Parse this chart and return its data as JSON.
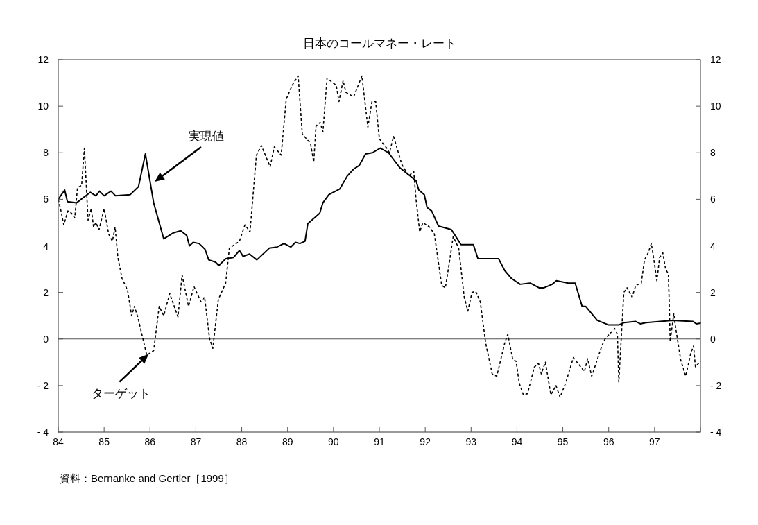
{
  "chart_data": {
    "type": "line",
    "title": "日本のコールマネー・レート",
    "xlim": [
      84,
      98
    ],
    "xticks": [
      84,
      85,
      86,
      87,
      88,
      89,
      90,
      91,
      92,
      93,
      94,
      95,
      96,
      97,
      {
        "value": 98,
        "label": null
      }
    ],
    "ylim": [
      -4,
      12
    ],
    "yticks": [
      {
        "value": -4,
        "label": "- 4"
      },
      {
        "value": -2,
        "label": "- 2"
      },
      0,
      2,
      4,
      6,
      8,
      10,
      12
    ],
    "y2lim": [
      -4,
      12
    ],
    "y2ticks": [
      {
        "value": -4,
        "label": "- 4"
      },
      {
        "value": -2,
        "label": "- 2"
      },
      0,
      2,
      4,
      6,
      8,
      10,
      12
    ],
    "grid": false,
    "marker": "none",
    "ref_lines": [
      {
        "axis": "y",
        "value": 0,
        "color": "#555555",
        "line_style": "solid"
      }
    ],
    "annotations": [
      "実現値",
      {
        "text": "ターゲット",
        "x": 85.97,
        "y": -0.65
      },
      "資料：Bernanke and Gertler［1999］"
    ],
    "series": [
      {
        "color": "#000000",
        "line_style": "solid",
        "x": [
          84,
          84.14,
          84.2,
          84.4,
          84.7,
          84.82,
          84.9,
          85.0,
          85.15,
          85.25,
          85.57,
          85.75,
          85.9,
          86.08,
          86.3,
          86.5,
          86.67,
          86.8,
          86.86,
          86.94,
          87.07,
          87.2,
          87.28,
          87.43,
          87.5,
          87.65,
          87.82,
          87.95,
          88.03,
          88.17,
          88.33,
          88.6,
          88.77,
          88.92,
          89.07,
          89.17,
          89.27,
          89.38,
          89.44,
          89.7,
          89.77,
          89.9,
          90.14,
          90.3,
          90.44,
          90.56,
          90.7,
          90.85,
          91.02,
          91.2,
          91.45,
          91.8,
          91.86,
          91.98,
          92.04,
          92.14,
          92.29,
          92.57,
          92.78,
          93.05,
          93.15,
          93.6,
          93.73,
          93.88,
          94.07,
          94.29,
          94.48,
          94.59,
          94.77,
          94.86,
          95.12,
          95.27,
          95.42,
          95.5,
          95.75,
          96.0,
          96.22,
          96.33,
          96.59,
          96.69,
          96.81,
          97.39,
          97.84,
          97.91,
          98.0
        ],
        "values": [
          6.0,
          6.4,
          5.9,
          5.85,
          6.3,
          6.15,
          6.35,
          6.15,
          6.35,
          6.15,
          6.2,
          6.55,
          7.95,
          5.85,
          4.3,
          4.55,
          4.65,
          4.45,
          4.0,
          4.15,
          4.1,
          3.85,
          3.4,
          3.3,
          3.15,
          3.45,
          3.5,
          3.8,
          3.55,
          3.65,
          3.4,
          3.9,
          3.95,
          4.1,
          3.95,
          4.15,
          4.1,
          4.2,
          4.95,
          5.4,
          5.85,
          6.2,
          6.45,
          7.0,
          7.3,
          7.45,
          7.95,
          8.0,
          8.2,
          8.0,
          7.35,
          6.8,
          6.4,
          6.2,
          5.65,
          5.5,
          4.85,
          4.7,
          4.05,
          4.05,
          3.45,
          3.45,
          2.95,
          2.6,
          2.35,
          2.4,
          2.2,
          2.2,
          2.35,
          2.5,
          2.4,
          2.4,
          1.4,
          1.4,
          0.8,
          0.6,
          0.6,
          0.7,
          0.75,
          0.65,
          0.7,
          0.8,
          0.75,
          0.65,
          0.68
        ]
      },
      {
        "color": "#000000",
        "line_style": "dashed",
        "x": [
          84,
          84.06,
          84.12,
          84.21,
          84.29,
          84.36,
          84.42,
          84.51,
          84.57,
          84.65,
          84.72,
          84.77,
          84.82,
          84.89,
          85.0,
          85.1,
          85.18,
          85.24,
          85.3,
          85.39,
          85.51,
          85.6,
          85.66,
          85.74,
          85.93,
          86.08,
          86.2,
          86.3,
          86.43,
          86.61,
          86.7,
          86.84,
          86.96,
          87.11,
          87.19,
          87.3,
          87.37,
          87.49,
          87.65,
          87.73,
          87.95,
          88.07,
          88.18,
          88.32,
          88.43,
          88.62,
          88.71,
          88.86,
          88.97,
          89.1,
          89.23,
          89.32,
          89.5,
          89.57,
          89.62,
          89.71,
          89.77,
          89.86,
          90.06,
          90.12,
          90.21,
          90.27,
          90.44,
          90.62,
          90.75,
          90.84,
          90.92,
          91.0,
          91.16,
          91.22,
          91.31,
          91.49,
          91.64,
          91.75,
          91.8,
          91.88,
          91.95,
          92.1,
          92.2,
          92.36,
          92.44,
          92.52,
          92.61,
          92.73,
          92.85,
          92.93,
          93.02,
          93.1,
          93.2,
          93.32,
          93.46,
          93.56,
          93.73,
          93.8,
          93.91,
          93.98,
          94.05,
          94.14,
          94.23,
          94.38,
          94.47,
          94.53,
          94.62,
          94.74,
          94.85,
          94.94,
          95.06,
          95.23,
          95.39,
          95.47,
          95.54,
          95.63,
          95.85,
          95.92,
          96.13,
          96.19,
          96.22,
          96.33,
          96.4,
          96.51,
          96.59,
          96.71,
          96.78,
          96.86,
          96.93,
          97.0,
          97.05,
          97.11,
          97.18,
          97.24,
          97.3,
          97.32,
          97.34,
          97.42,
          97.45,
          97.57,
          97.68,
          97.79,
          97.85,
          97.89,
          98.0
        ],
        "values": [
          6.0,
          5.5,
          4.9,
          5.5,
          5.4,
          5.2,
          6.5,
          6.6,
          8.2,
          5.1,
          5.6,
          4.8,
          5.0,
          4.7,
          5.6,
          4.5,
          4.2,
          4.8,
          3.5,
          2.6,
          2.1,
          1.0,
          1.4,
          0.9,
          -0.7,
          -0.5,
          1.4,
          1.0,
          1.95,
          0.95,
          2.75,
          1.4,
          2.25,
          1.6,
          1.8,
          0.0,
          -0.4,
          1.7,
          2.4,
          3.9,
          4.2,
          4.9,
          4.6,
          7.9,
          8.3,
          7.4,
          8.25,
          7.9,
          10.3,
          10.9,
          11.3,
          8.8,
          8.4,
          7.6,
          9.15,
          9.3,
          8.9,
          11.2,
          10.9,
          10.2,
          11.1,
          10.6,
          10.4,
          11.3,
          9.1,
          10.2,
          10.2,
          8.6,
          8.2,
          8.0,
          8.7,
          7.5,
          7.0,
          7.2,
          6.0,
          4.6,
          5.0,
          4.8,
          4.5,
          2.3,
          2.2,
          3.2,
          4.4,
          3.9,
          1.8,
          1.2,
          2.0,
          2.05,
          1.6,
          -0.2,
          -1.5,
          -1.6,
          -0.2,
          0.2,
          -0.9,
          -0.95,
          -1.9,
          -2.4,
          -2.35,
          -1.2,
          -1.05,
          -1.5,
          -1.0,
          -2.4,
          -2.0,
          -2.5,
          -1.9,
          -0.8,
          -1.2,
          -1.4,
          -0.85,
          -1.6,
          -0.3,
          0.0,
          0.45,
          0.2,
          -1.85,
          2.0,
          2.2,
          1.8,
          2.3,
          2.4,
          3.4,
          3.7,
          4.1,
          3.2,
          2.5,
          3.5,
          3.7,
          3.0,
          2.8,
          1.5,
          -0.1,
          1.1,
          0.6,
          -0.9,
          -1.6,
          -0.6,
          -0.3,
          -1.2,
          -0.95
        ]
      }
    ]
  }
}
